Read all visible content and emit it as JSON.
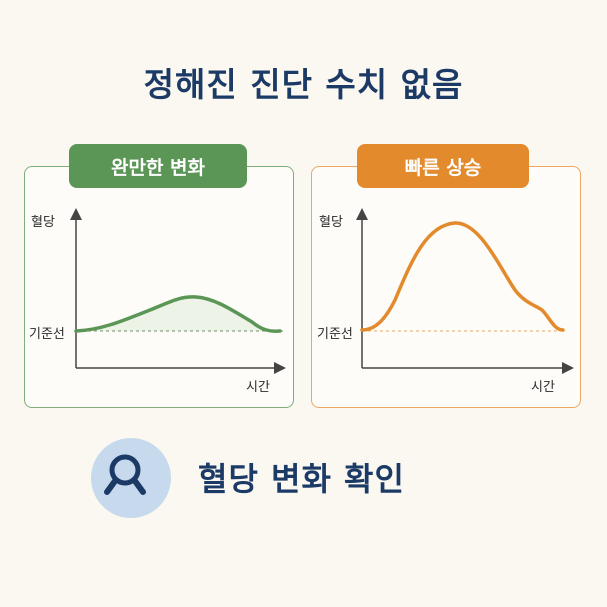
{
  "title": "정해진 진단 수치 없음",
  "panels": {
    "left": {
      "badge": "완만한 변화",
      "y_label": "혈당",
      "baseline_label": "기준선",
      "x_label": "시간",
      "color": "#5b9657"
    },
    "right": {
      "badge": "빠른 상승",
      "y_label": "혈당",
      "baseline_label": "기준선",
      "x_label": "시간",
      "color": "#e38a2d"
    }
  },
  "bottom": {
    "icon": "magnifier-icon",
    "text": "혈당 변화 확인"
  }
}
